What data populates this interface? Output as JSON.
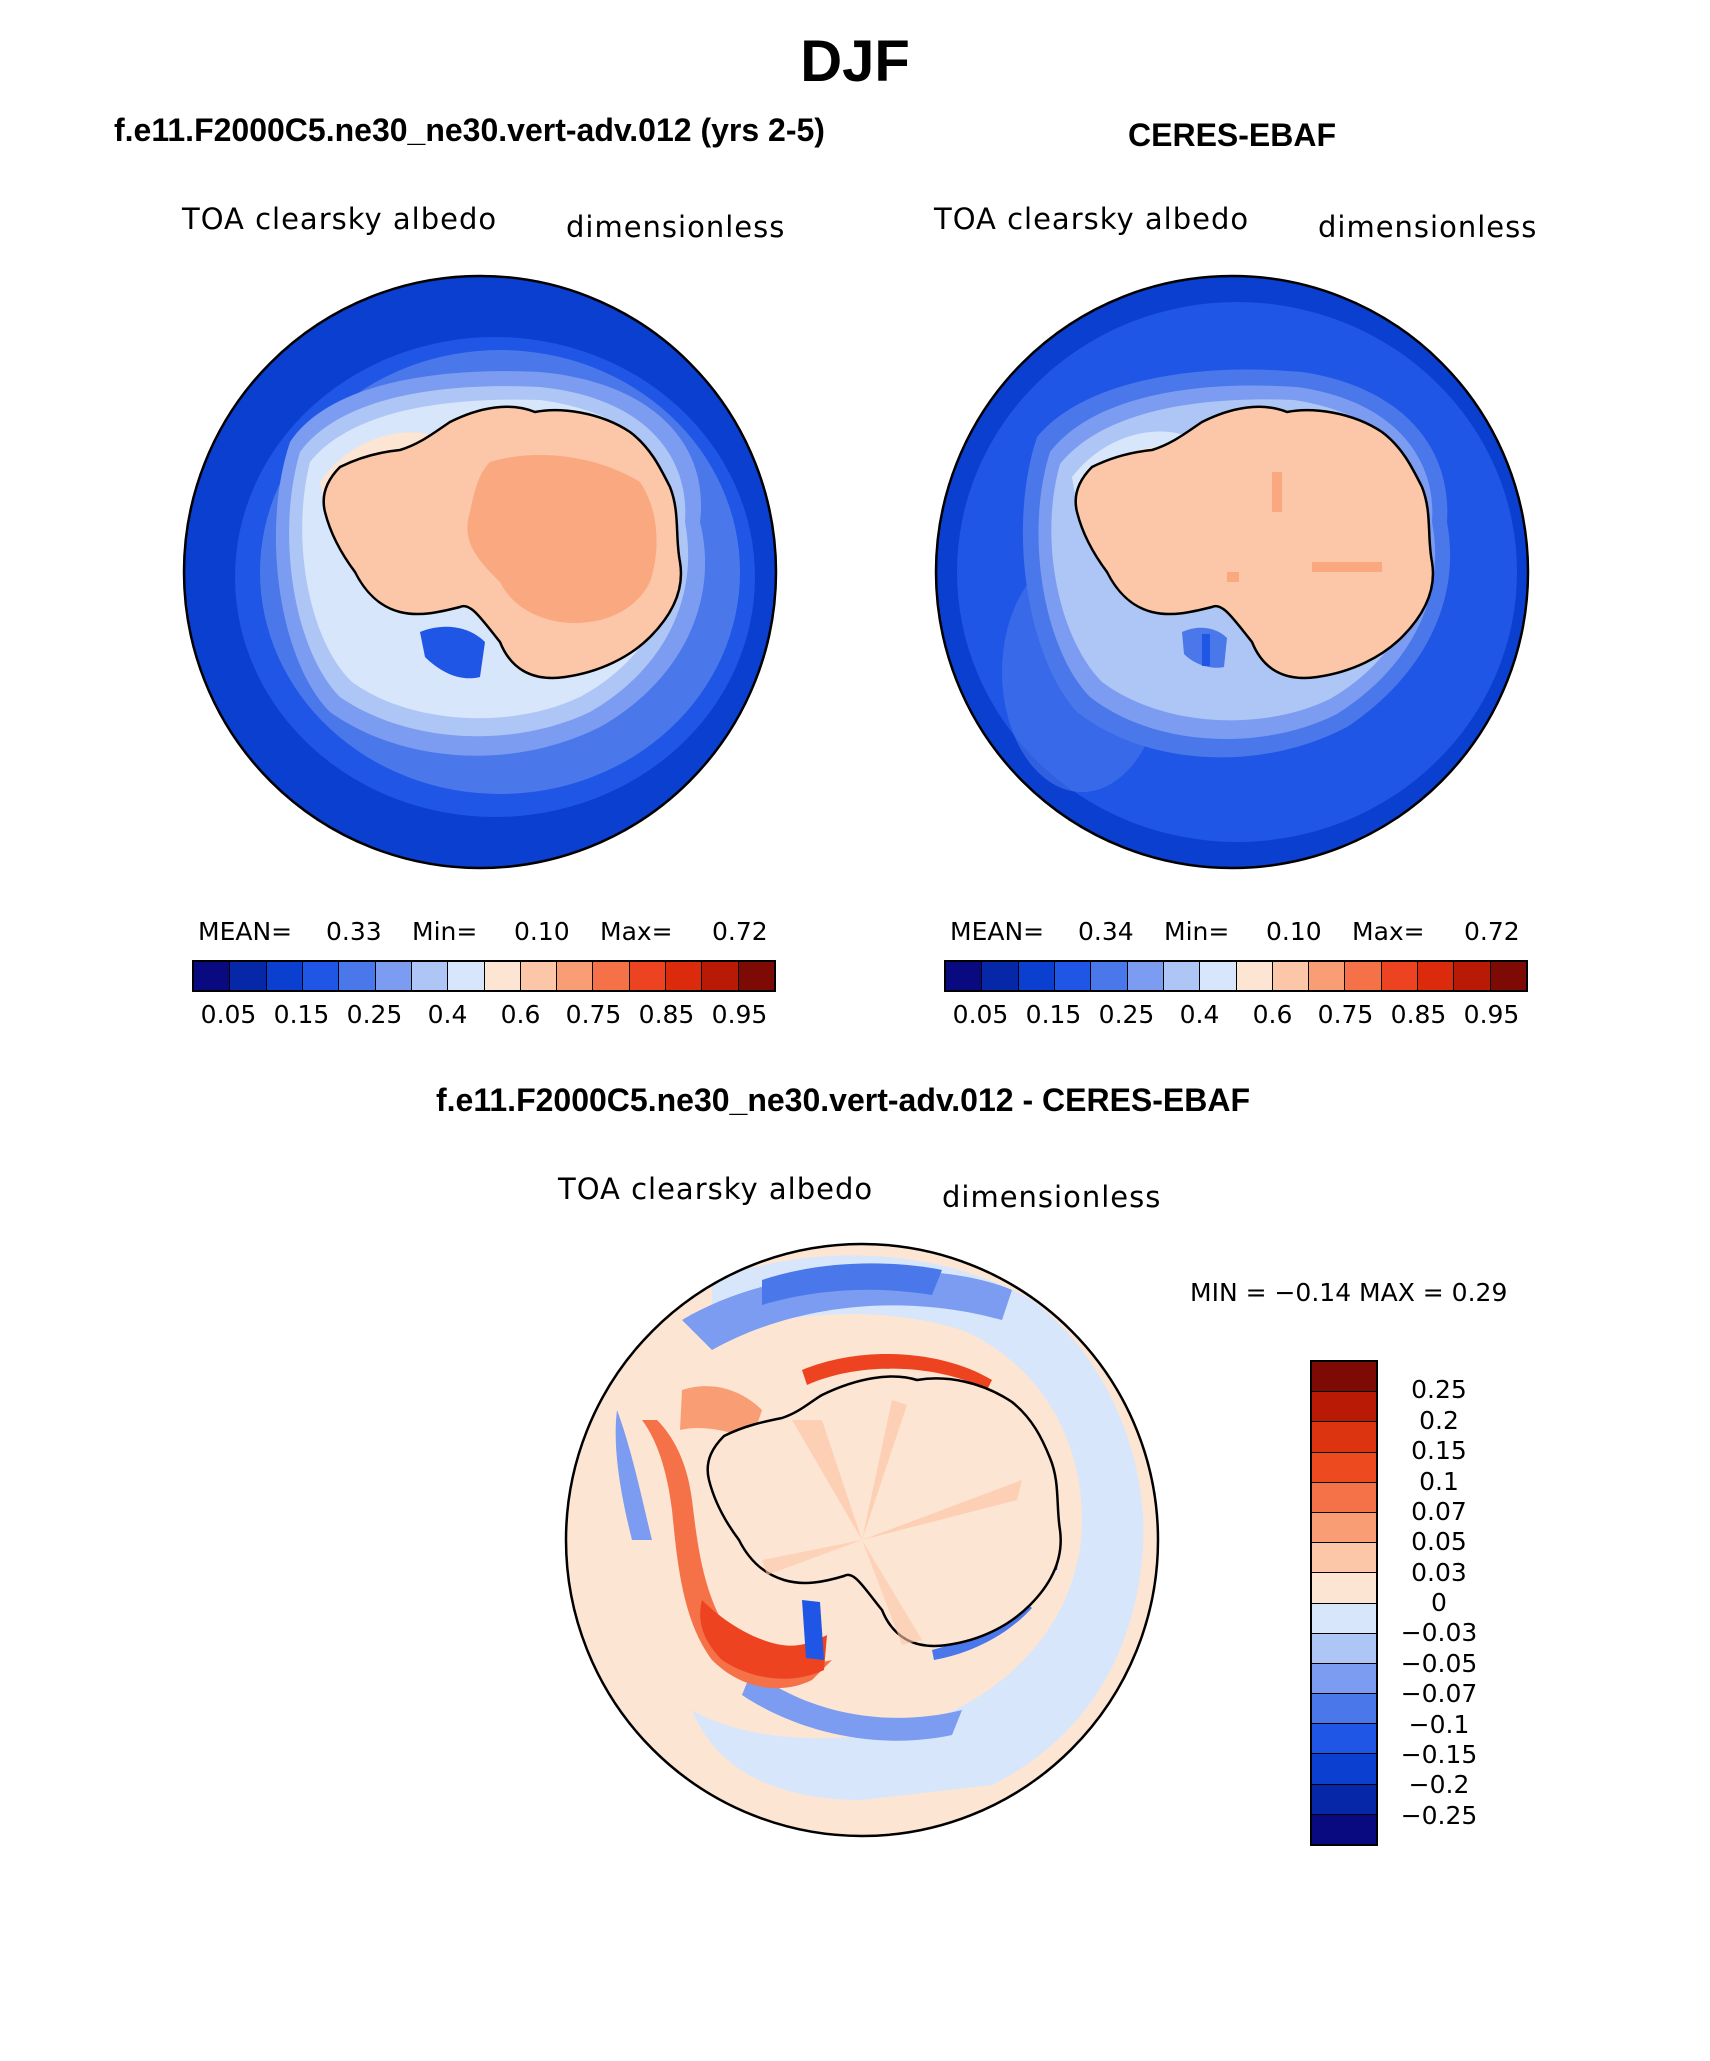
{
  "season": "DJF",
  "panels": {
    "model": {
      "title": "f.e11.F2000C5.ne30_ne30.vert-adv.012 (yrs 2-5)",
      "variable": "TOA clearsky albedo",
      "units": "dimensionless",
      "mean_label": "MEAN=",
      "mean": "0.33",
      "min_label": "Min=",
      "min": "0.10",
      "max_label": "Max=",
      "max": "0.72"
    },
    "obs": {
      "title": "CERES-EBAF",
      "variable": "TOA clearsky albedo",
      "units": "dimensionless",
      "mean_label": "MEAN=",
      "mean": "0.34",
      "min_label": "Min=",
      "min": "0.10",
      "max_label": "Max=",
      "max": "0.72"
    },
    "diff": {
      "title": "f.e11.F2000C5.ne30_ne30.vert-adv.012 - CERES-EBAF",
      "variable": "TOA clearsky albedo",
      "units": "dimensionless",
      "range_text": "MIN =   −0.14  MAX =     0.29"
    }
  },
  "colorbar_main": {
    "tick_labels": [
      "0.05",
      "0.15",
      "0.25",
      "0.4",
      "0.6",
      "0.75",
      "0.85",
      "0.95"
    ],
    "colors": [
      "#0a0a80",
      "#0628a8",
      "#0a3fd0",
      "#1f56e6",
      "#4a77ea",
      "#7b9cf0",
      "#aec6f6",
      "#d7e6fb",
      "#fde5d3",
      "#fcc7a8",
      "#f99e74",
      "#f57148",
      "#ed4320",
      "#dc2b0c",
      "#b81a06",
      "#7e0a05"
    ]
  },
  "colorbar_diff": {
    "tick_labels": [
      "0.25",
      "0.2",
      "0.15",
      "0.1",
      "0.07",
      "0.05",
      "0.03",
      "0",
      "−0.03",
      "−0.05",
      "−0.07",
      "−0.1",
      "−0.15",
      "−0.2",
      "−0.25"
    ],
    "colors": [
      "#7e0a05",
      "#b81a06",
      "#dc3410",
      "#ee4a1f",
      "#f57148",
      "#f99e74",
      "#fcc7a8",
      "#fde5d3",
      "#d7e6fb",
      "#aec6f6",
      "#7b9cf0",
      "#4a77ea",
      "#1f56e6",
      "#0a3fd0",
      "#0628a8",
      "#0a0a80"
    ]
  }
}
